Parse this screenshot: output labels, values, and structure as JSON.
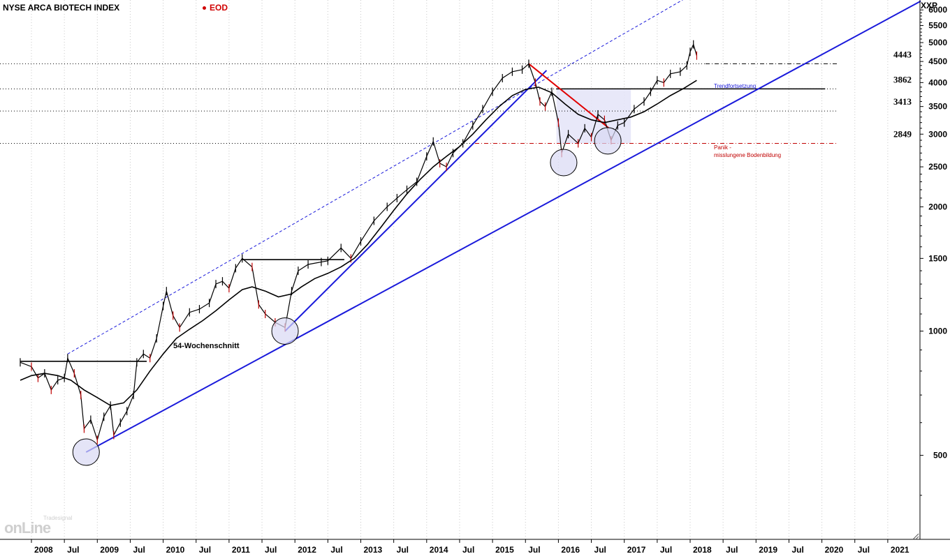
{
  "header": {
    "title": "NYSE ARCA BIOTECH INDEX",
    "mode": "EOD",
    "symbol": "XXP"
  },
  "brand": {
    "name": "onLine",
    "sub": "Tradesignal"
  },
  "colors": {
    "price_line": "#000000",
    "red_candle": "#c00000",
    "trend_blue": "#1a1adb",
    "downtrend_red": "#e00000",
    "support_red": "#c00000",
    "zone_fill": "#e6e6f8",
    "circle_fill": "#d8d8f4"
  },
  "chart_data": {
    "type": "line",
    "title": "NYSE ARCA BIOTECH INDEX",
    "y_scale": "log",
    "ylim": [
      300,
      6000
    ],
    "y_ticks": [
      500,
      1000,
      1500,
      2000,
      2500,
      3000,
      3500,
      4000,
      4500,
      5000,
      5500,
      6000
    ],
    "x_range": [
      2007.83,
      2021.5
    ],
    "x_tick_labels": [
      "2008",
      "Jul",
      "2009",
      "Jul",
      "2010",
      "Jul",
      "2011",
      "Jul",
      "2012",
      "Jul",
      "2013",
      "Jul",
      "2014",
      "Jul",
      "2015",
      "Jul",
      "2016",
      "Jul",
      "2017",
      "Jul",
      "2018",
      "Jul",
      "2019",
      "Jul",
      "2020",
      "Jul",
      "2021"
    ],
    "x_tick_values": [
      2008.0,
      2008.5,
      2009.0,
      2009.5,
      2010.0,
      2010.5,
      2011.0,
      2011.5,
      2012.0,
      2012.5,
      2013.0,
      2013.5,
      2014.0,
      2014.5,
      2015.0,
      2015.5,
      2016.0,
      2016.5,
      2017.0,
      2017.5,
      2018.0,
      2018.5,
      2019.0,
      2019.5,
      2020.0,
      2020.5,
      2021.0
    ],
    "series": [
      {
        "kind": "price",
        "points": [
          [
            2007.83,
            840
          ],
          [
            2008.0,
            820
          ],
          [
            2008.1,
            770
          ],
          [
            2008.2,
            790
          ],
          [
            2008.3,
            720
          ],
          [
            2008.4,
            760
          ],
          [
            2008.5,
            770
          ],
          [
            2008.55,
            860
          ],
          [
            2008.65,
            790
          ],
          [
            2008.75,
            700
          ],
          [
            2008.8,
            580
          ],
          [
            2008.9,
            610
          ],
          [
            2009.0,
            545
          ],
          [
            2009.1,
            620
          ],
          [
            2009.2,
            660
          ],
          [
            2009.25,
            560
          ],
          [
            2009.35,
            600
          ],
          [
            2009.45,
            640
          ],
          [
            2009.55,
            700
          ],
          [
            2009.6,
            840
          ],
          [
            2009.7,
            880
          ],
          [
            2009.8,
            860
          ],
          [
            2009.9,
            960
          ],
          [
            2010.0,
            1150
          ],
          [
            2010.05,
            1250
          ],
          [
            2010.15,
            1090
          ],
          [
            2010.25,
            1020
          ],
          [
            2010.4,
            1110
          ],
          [
            2010.55,
            1130
          ],
          [
            2010.7,
            1170
          ],
          [
            2010.8,
            1300
          ],
          [
            2010.9,
            1320
          ],
          [
            2011.0,
            1270
          ],
          [
            2011.1,
            1420
          ],
          [
            2011.2,
            1500
          ],
          [
            2011.35,
            1430
          ],
          [
            2011.45,
            1160
          ],
          [
            2011.55,
            1100
          ],
          [
            2011.7,
            1050
          ],
          [
            2011.85,
            1020
          ],
          [
            2011.95,
            1250
          ],
          [
            2012.05,
            1400
          ],
          [
            2012.2,
            1450
          ],
          [
            2012.4,
            1470
          ],
          [
            2012.5,
            1480
          ],
          [
            2012.7,
            1590
          ],
          [
            2012.85,
            1500
          ],
          [
            2013.0,
            1650
          ],
          [
            2013.2,
            1850
          ],
          [
            2013.4,
            2000
          ],
          [
            2013.55,
            2100
          ],
          [
            2013.7,
            2200
          ],
          [
            2013.85,
            2300
          ],
          [
            2014.0,
            2650
          ],
          [
            2014.1,
            2880
          ],
          [
            2014.2,
            2550
          ],
          [
            2014.3,
            2500
          ],
          [
            2014.4,
            2700
          ],
          [
            2014.55,
            2850
          ],
          [
            2014.7,
            3150
          ],
          [
            2014.85,
            3450
          ],
          [
            2015.0,
            3800
          ],
          [
            2015.15,
            4100
          ],
          [
            2015.3,
            4250
          ],
          [
            2015.45,
            4300
          ],
          [
            2015.55,
            4443
          ],
          [
            2015.65,
            4000
          ],
          [
            2015.72,
            3600
          ],
          [
            2015.8,
            3500
          ],
          [
            2015.9,
            3800
          ],
          [
            2016.0,
            3200
          ],
          [
            2016.05,
            2700
          ],
          [
            2016.15,
            3000
          ],
          [
            2016.3,
            2850
          ],
          [
            2016.4,
            3100
          ],
          [
            2016.5,
            2950
          ],
          [
            2016.6,
            3350
          ],
          [
            2016.7,
            3250
          ],
          [
            2016.8,
            2900
          ],
          [
            2016.9,
            3150
          ],
          [
            2017.0,
            3200
          ],
          [
            2017.15,
            3450
          ],
          [
            2017.3,
            3600
          ],
          [
            2017.4,
            3800
          ],
          [
            2017.5,
            4050
          ],
          [
            2017.6,
            4000
          ],
          [
            2017.7,
            4200
          ],
          [
            2017.85,
            4250
          ],
          [
            2017.95,
            4400
          ],
          [
            2018.0,
            4750
          ],
          [
            2018.05,
            4950
          ],
          [
            2018.1,
            4650
          ]
        ]
      },
      {
        "name": "54-Wochenschnitt",
        "kind": "ma",
        "points": [
          [
            2007.83,
            760
          ],
          [
            2008.0,
            780
          ],
          [
            2008.2,
            790
          ],
          [
            2008.4,
            780
          ],
          [
            2008.6,
            760
          ],
          [
            2008.8,
            720
          ],
          [
            2009.0,
            690
          ],
          [
            2009.2,
            660
          ],
          [
            2009.4,
            670
          ],
          [
            2009.6,
            720
          ],
          [
            2009.8,
            800
          ],
          [
            2010.0,
            880
          ],
          [
            2010.2,
            960
          ],
          [
            2010.4,
            1010
          ],
          [
            2010.6,
            1060
          ],
          [
            2010.8,
            1120
          ],
          [
            2011.0,
            1190
          ],
          [
            2011.2,
            1260
          ],
          [
            2011.35,
            1280
          ],
          [
            2011.55,
            1250
          ],
          [
            2011.75,
            1210
          ],
          [
            2011.95,
            1230
          ],
          [
            2012.1,
            1280
          ],
          [
            2012.3,
            1340
          ],
          [
            2012.5,
            1380
          ],
          [
            2012.7,
            1430
          ],
          [
            2012.9,
            1500
          ],
          [
            2013.1,
            1620
          ],
          [
            2013.3,
            1780
          ],
          [
            2013.5,
            1960
          ],
          [
            2013.7,
            2150
          ],
          [
            2013.9,
            2330
          ],
          [
            2014.1,
            2500
          ],
          [
            2014.3,
            2650
          ],
          [
            2014.5,
            2800
          ],
          [
            2014.7,
            3000
          ],
          [
            2014.9,
            3250
          ],
          [
            2015.1,
            3500
          ],
          [
            2015.3,
            3720
          ],
          [
            2015.5,
            3850
          ],
          [
            2015.7,
            3900
          ],
          [
            2015.9,
            3780
          ],
          [
            2016.1,
            3550
          ],
          [
            2016.3,
            3350
          ],
          [
            2016.5,
            3250
          ],
          [
            2016.7,
            3200
          ],
          [
            2016.9,
            3250
          ],
          [
            2017.1,
            3300
          ],
          [
            2017.3,
            3400
          ],
          [
            2017.5,
            3550
          ],
          [
            2017.7,
            3720
          ],
          [
            2017.9,
            3870
          ],
          [
            2018.1,
            4050
          ]
        ]
      }
    ],
    "horizontal_levels": [
      {
        "value": 4443,
        "label": "4443",
        "style": "dashdot-black"
      },
      {
        "value": 3862,
        "label": "3862",
        "style": "solid-black"
      },
      {
        "value": 3413,
        "label": "3413",
        "style": "dotted-black"
      },
      {
        "value": 2849,
        "label": "2849",
        "style": "dashdot-red"
      }
    ],
    "annotations": [
      {
        "text": "54-Wochenschnitt",
        "color": "black"
      },
      {
        "text": "Trendfortsetzung",
        "color": "blue"
      },
      {
        "text": "Panik -",
        "color": "red"
      },
      {
        "text": "misslungene Bodenbildung",
        "color": "red"
      }
    ],
    "trendlines": [
      {
        "from": [
          2008.83,
          509
        ],
        "to": [
          2021.5,
          6300
        ],
        "style": "solid-blue"
      },
      {
        "from": [
          2008.55,
          880
        ],
        "to": [
          2018.0,
          6500
        ],
        "style": "dashed-blue"
      },
      {
        "from": [
          2011.85,
          1000
        ],
        "to": [
          2015.82,
          4280
        ],
        "style": "solid-blue"
      },
      {
        "from": [
          2015.55,
          4443
        ],
        "to": [
          2016.77,
          3100
        ],
        "style": "solid-red"
      }
    ],
    "resistance_segments": [
      {
        "from": 2007.83,
        "to": 2009.75,
        "value": 845
      },
      {
        "from": 2011.2,
        "to": 2012.75,
        "value": 1490
      },
      {
        "from": 2015.97,
        "to": 2020.05,
        "value": 3862
      }
    ],
    "zone": {
      "x_from": 2015.97,
      "x_to": 2017.1,
      "y_from": 2849,
      "y_to": 3862
    },
    "circles": [
      {
        "x": 2008.83,
        "y": 509
      },
      {
        "x": 2011.85,
        "y": 1000
      },
      {
        "x": 2016.08,
        "y": 2560
      },
      {
        "x": 2016.75,
        "y": 2890
      }
    ]
  }
}
